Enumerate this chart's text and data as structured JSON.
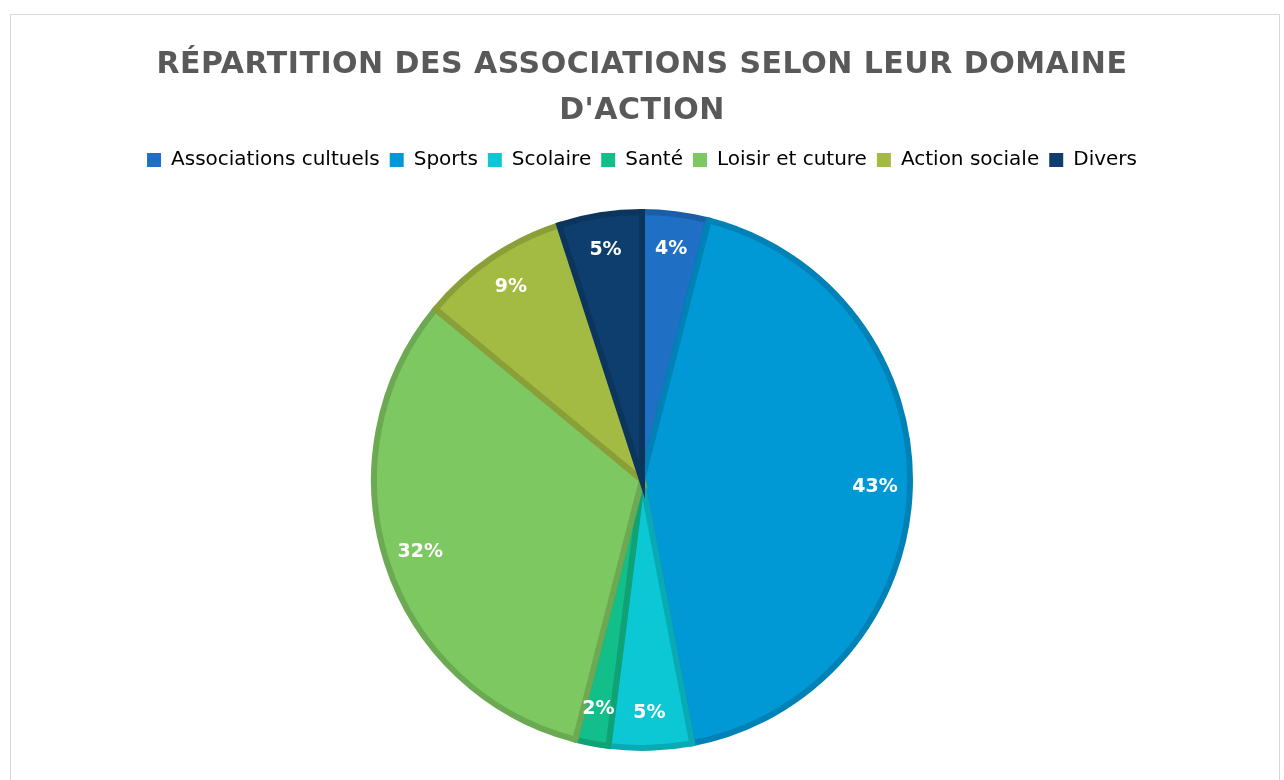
{
  "chart_data": {
    "type": "pie",
    "title": "RÉPARTITION DES ASSOCIATIONS SELON LEUR DOMAINE D'ACTION",
    "categories": [
      "Associations cultuels",
      "Sports",
      "Scolaire",
      "Santé",
      "Loisir et cuture",
      "Action sociale",
      "Divers"
    ],
    "values": [
      4,
      43,
      5,
      2,
      32,
      9,
      5
    ],
    "colors": [
      "#1f6fc5",
      "#0099d6",
      "#0cc8d4",
      "#12bf8a",
      "#7ec862",
      "#a3bb42",
      "#0e3e6e"
    ],
    "value_labels": [
      "4%",
      "43%",
      "5%",
      "2%",
      "32%",
      "9%",
      "5%"
    ],
    "legend": "top"
  }
}
